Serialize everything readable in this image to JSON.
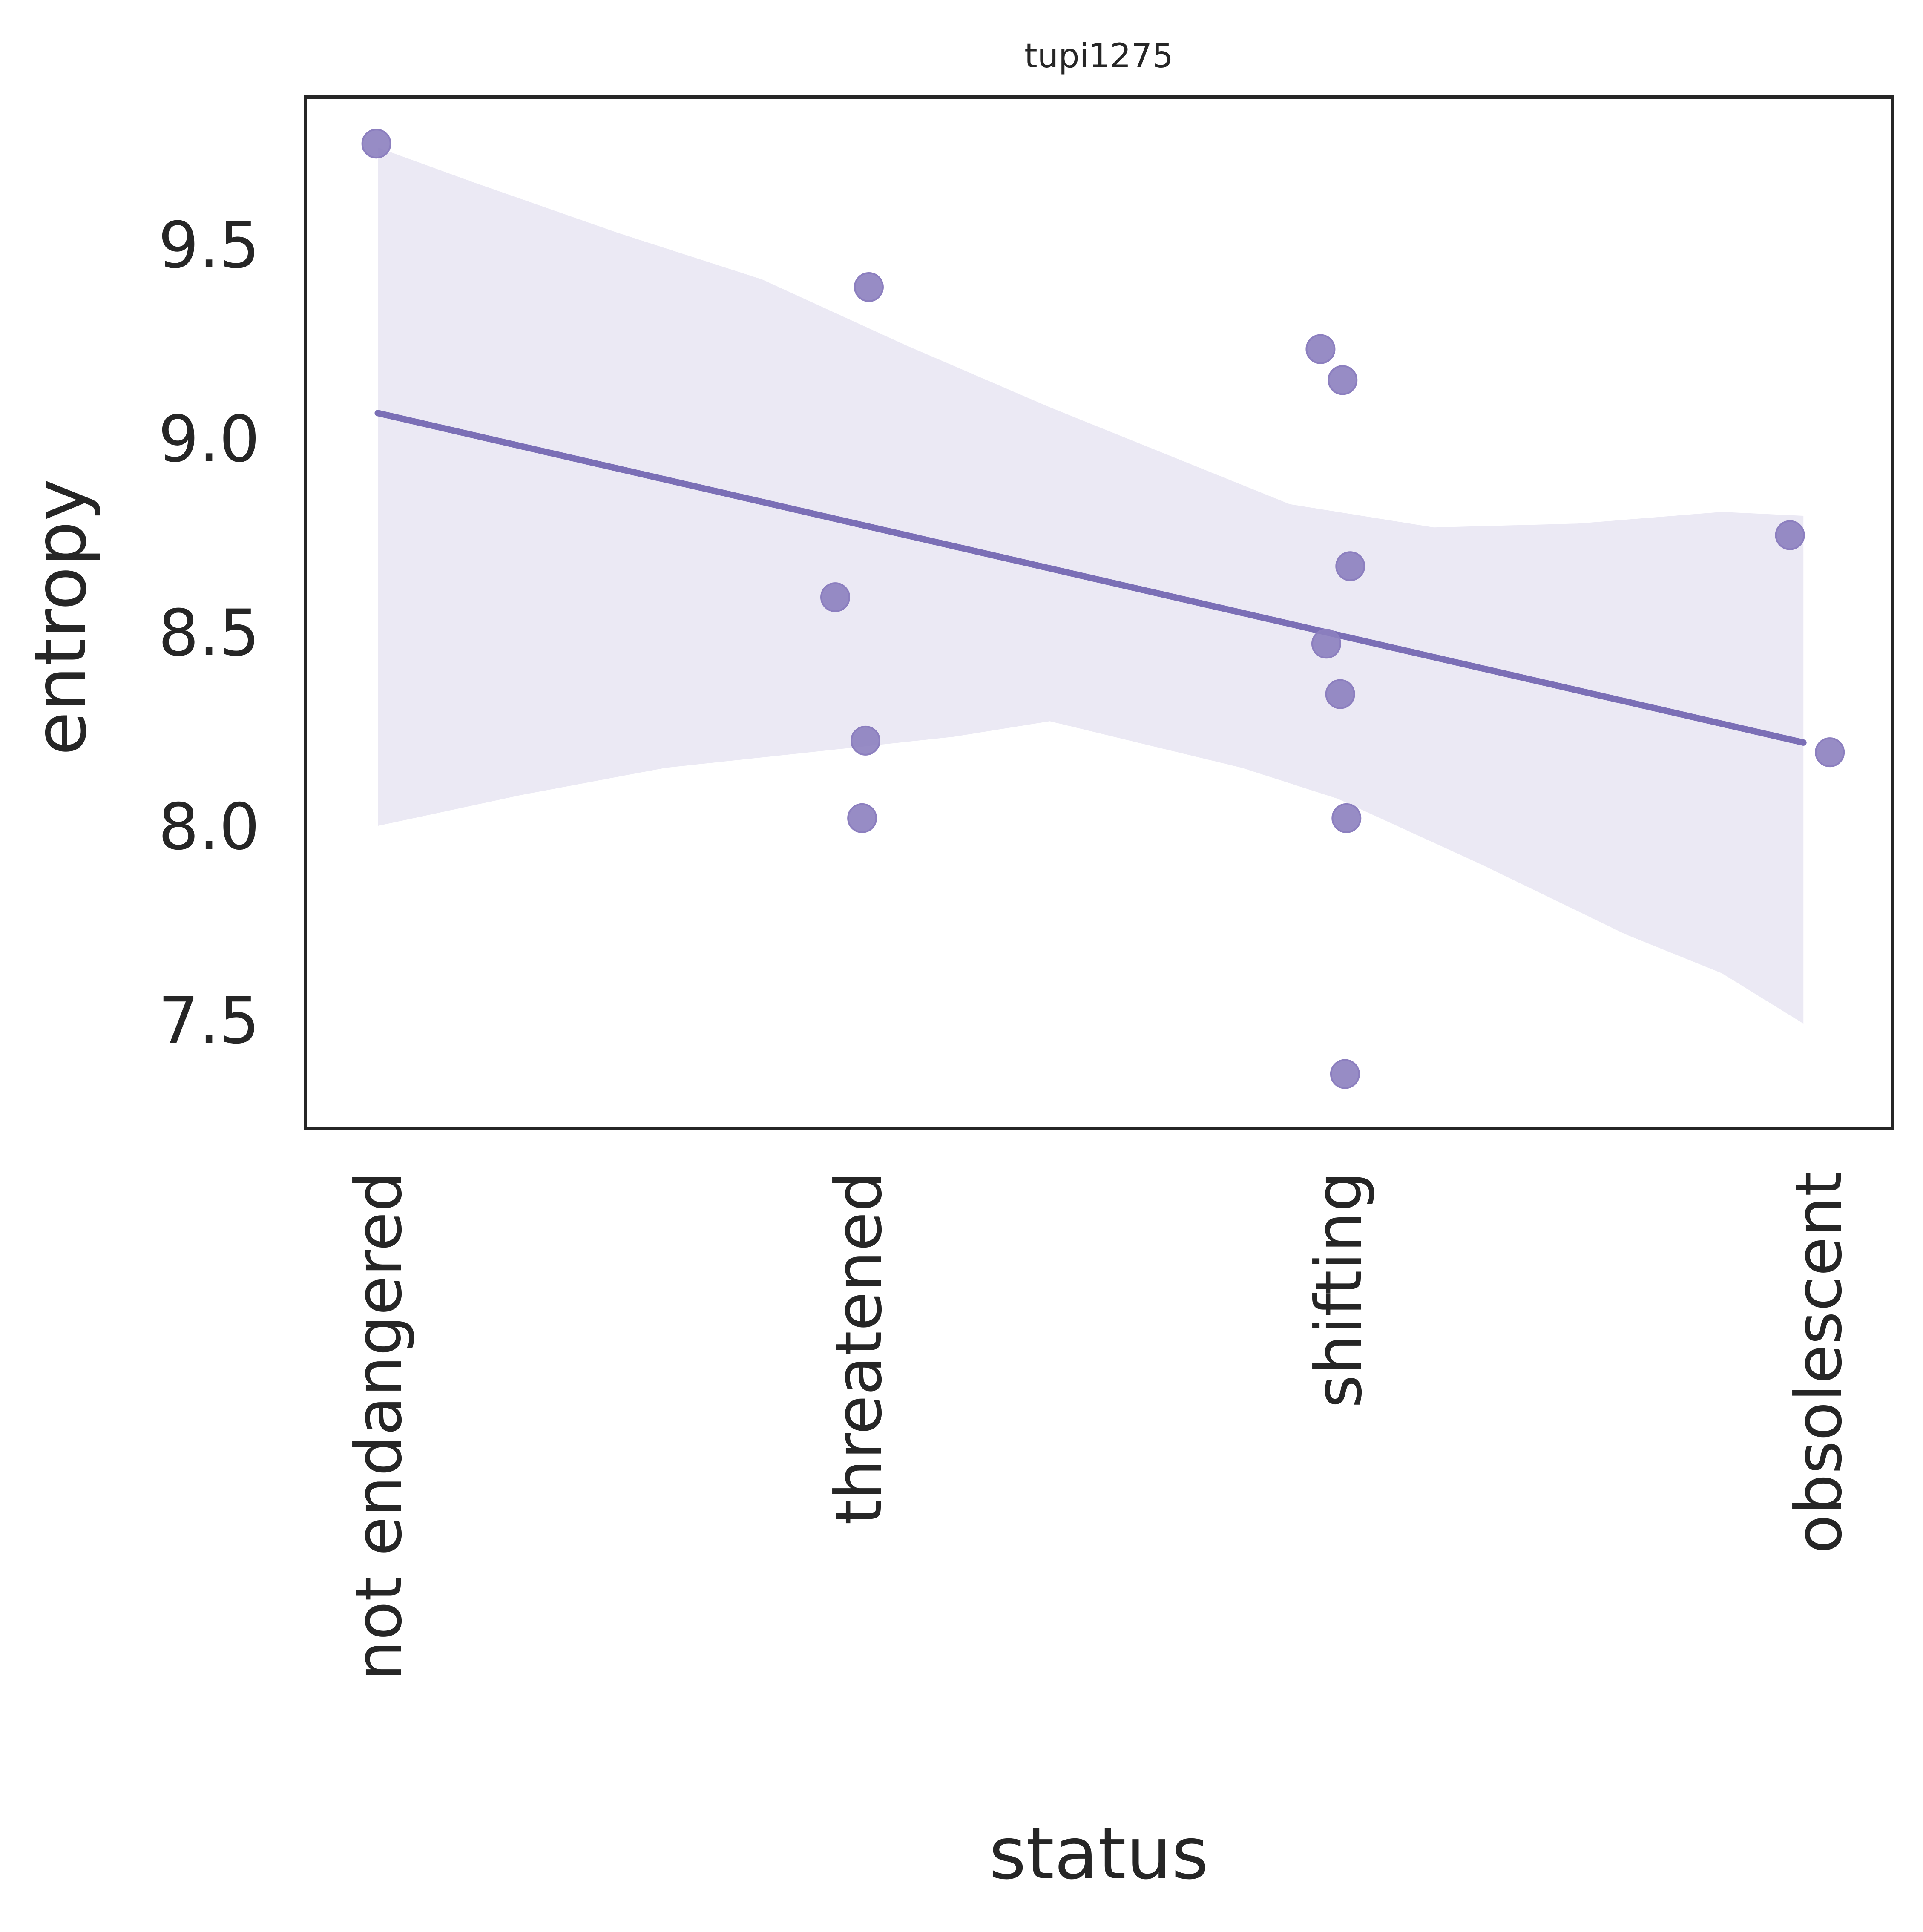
{
  "chart_data": {
    "type": "scatter",
    "title": "tupi1275",
    "xlabel": "status",
    "ylabel": "entropy",
    "categories": [
      "not endangered",
      "threatened",
      "shifting",
      "obsolescent"
    ],
    "ylim": [
      7.22,
      9.88
    ],
    "yticks": [
      "7.5",
      "8.0",
      "8.5",
      "9.0",
      "9.5"
    ],
    "grid": false,
    "points": [
      {
        "x": -0.003,
        "y": 9.76
      },
      {
        "x": 1.023,
        "y": 9.39
      },
      {
        "x": 0.953,
        "y": 8.59
      },
      {
        "x": 1.016,
        "y": 8.22
      },
      {
        "x": 1.009,
        "y": 8.02
      },
      {
        "x": 1.964,
        "y": 9.23
      },
      {
        "x": 2.01,
        "y": 9.15
      },
      {
        "x": 2.026,
        "y": 8.67
      },
      {
        "x": 1.976,
        "y": 8.47
      },
      {
        "x": 2.005,
        "y": 8.34
      },
      {
        "x": 2.018,
        "y": 8.02
      },
      {
        "x": 2.015,
        "y": 7.36
      },
      {
        "x": 2.942,
        "y": 8.75
      },
      {
        "x": 3.025,
        "y": 8.19
      }
    ],
    "regression": {
      "x": [
        0,
        2.97
      ],
      "y": [
        9.065,
        8.215
      ]
    },
    "ci_upper": [
      {
        "x": 0,
        "y": 9.75
      },
      {
        "x": 0.2,
        "y": 9.66
      },
      {
        "x": 0.5,
        "y": 9.53
      },
      {
        "x": 0.8,
        "y": 9.41
      },
      {
        "x": 1.1,
        "y": 9.24
      },
      {
        "x": 1.4,
        "y": 9.08
      },
      {
        "x": 1.7,
        "y": 8.93
      },
      {
        "x": 1.9,
        "y": 8.83
      },
      {
        "x": 2.2,
        "y": 8.77
      },
      {
        "x": 2.5,
        "y": 8.78
      },
      {
        "x": 2.8,
        "y": 8.81
      },
      {
        "x": 2.97,
        "y": 8.8
      }
    ],
    "ci_lower": [
      {
        "x": 0,
        "y": 8.0
      },
      {
        "x": 0.3,
        "y": 8.08
      },
      {
        "x": 0.6,
        "y": 8.15
      },
      {
        "x": 0.9,
        "y": 8.19
      },
      {
        "x": 1.2,
        "y": 8.23
      },
      {
        "x": 1.4,
        "y": 8.27
      },
      {
        "x": 1.6,
        "y": 8.21
      },
      {
        "x": 1.8,
        "y": 8.15
      },
      {
        "x": 2.0,
        "y": 8.07
      },
      {
        "x": 2.3,
        "y": 7.9
      },
      {
        "x": 2.6,
        "y": 7.72
      },
      {
        "x": 2.8,
        "y": 7.62
      },
      {
        "x": 2.97,
        "y": 7.49
      }
    ],
    "colors": {
      "points": "#8c7fbf",
      "line": "#7b6fb6",
      "band": "#ebe9f4",
      "frame": "#262626"
    }
  }
}
